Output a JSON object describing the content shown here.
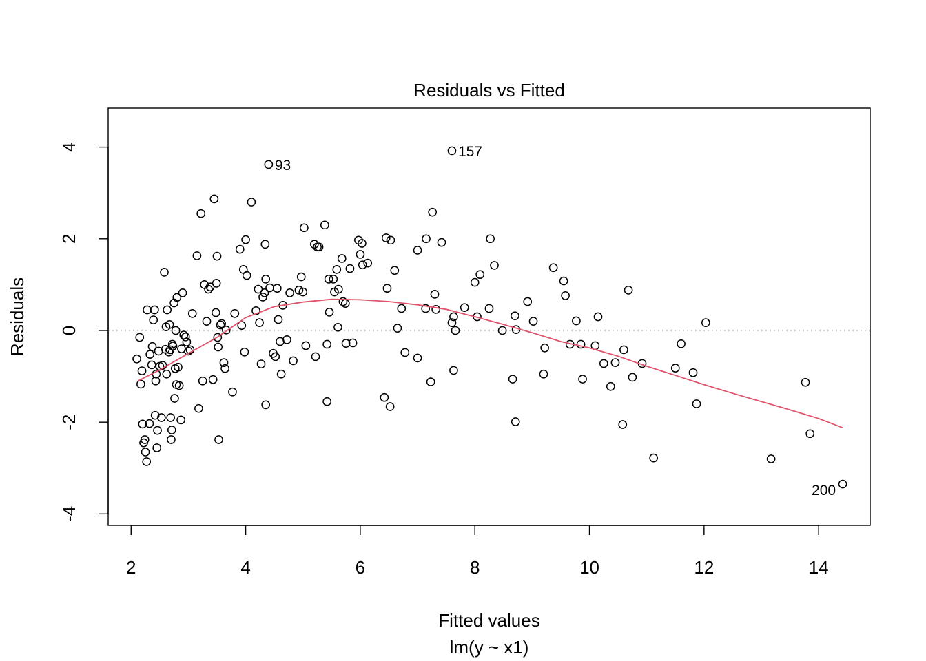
{
  "chart_data": {
    "type": "scatter",
    "title": "Residuals vs Fitted",
    "xlabel": "Fitted values",
    "sublabel": "lm(y ~ x1)",
    "ylabel": "Residuals",
    "xlim": [
      1.6,
      14.9
    ],
    "ylim": [
      -4.25,
      4.85
    ],
    "xticks": [
      2,
      4,
      6,
      8,
      10,
      12,
      14
    ],
    "yticks": [
      -4,
      -2,
      0,
      2,
      4
    ],
    "grid": false,
    "reference_line": {
      "y": 0,
      "style": "dotted",
      "color": "#bebebe"
    },
    "smooth_color": "#df536b",
    "point_color": "#000000",
    "labeled_points": [
      {
        "label": "157",
        "x": 7.6,
        "y": 3.92
      },
      {
        "label": "93",
        "x": 4.4,
        "y": 3.62
      },
      {
        "label": "200",
        "x": 14.42,
        "y": -3.35
      }
    ],
    "smooth": [
      [
        2.12,
        -1.1
      ],
      [
        2.5,
        -0.86
      ],
      [
        3.0,
        -0.5
      ],
      [
        3.5,
        -0.15
      ],
      [
        4.0,
        0.28
      ],
      [
        4.5,
        0.52
      ],
      [
        5.0,
        0.62
      ],
      [
        5.5,
        0.68
      ],
      [
        6.0,
        0.67
      ],
      [
        6.5,
        0.63
      ],
      [
        7.0,
        0.56
      ],
      [
        7.5,
        0.46
      ],
      [
        8.0,
        0.3
      ],
      [
        8.5,
        0.13
      ],
      [
        9.0,
        -0.05
      ],
      [
        9.5,
        -0.24
      ],
      [
        10.0,
        -0.38
      ],
      [
        10.5,
        -0.56
      ],
      [
        11.0,
        -0.78
      ],
      [
        11.5,
        -0.98
      ],
      [
        12.0,
        -1.18
      ],
      [
        12.5,
        -1.37
      ],
      [
        13.0,
        -1.55
      ],
      [
        13.5,
        -1.73
      ],
      [
        14.0,
        -1.92
      ],
      [
        14.42,
        -2.12
      ]
    ],
    "points": [
      [
        2.1,
        -0.62
      ],
      [
        2.15,
        -0.15
      ],
      [
        2.17,
        -1.17
      ],
      [
        2.19,
        -0.88
      ],
      [
        2.2,
        -2.04
      ],
      [
        2.22,
        -2.45
      ],
      [
        2.24,
        -2.38
      ],
      [
        2.25,
        -2.65
      ],
      [
        2.27,
        -2.86
      ],
      [
        2.28,
        0.45
      ],
      [
        2.32,
        -2.03
      ],
      [
        2.33,
        -0.52
      ],
      [
        2.36,
        -0.75
      ],
      [
        2.37,
        -0.35
      ],
      [
        2.39,
        0.23
      ],
      [
        2.41,
        0.45
      ],
      [
        2.42,
        -1.85
      ],
      [
        2.43,
        -1.1
      ],
      [
        2.44,
        -0.95
      ],
      [
        2.45,
        -2.56
      ],
      [
        2.46,
        -2.18
      ],
      [
        2.48,
        -0.45
      ],
      [
        2.5,
        -0.78
      ],
      [
        2.53,
        -1.9
      ],
      [
        2.55,
        -0.76
      ],
      [
        2.58,
        1.27
      ],
      [
        2.6,
        -0.41
      ],
      [
        2.61,
        0.08
      ],
      [
        2.62,
        -0.95
      ],
      [
        2.63,
        0.45
      ],
      [
        2.66,
        -0.47
      ],
      [
        2.67,
        0.13
      ],
      [
        2.68,
        -0.42
      ],
      [
        2.69,
        -1.9
      ],
      [
        2.7,
        -2.38
      ],
      [
        2.71,
        -2.17
      ],
      [
        2.72,
        -0.3
      ],
      [
        2.73,
        -0.34
      ],
      [
        2.75,
        0.6
      ],
      [
        2.76,
        -1.48
      ],
      [
        2.77,
        -0.83
      ],
      [
        2.78,
        0.0
      ],
      [
        2.79,
        -1.18
      ],
      [
        2.8,
        0.72
      ],
      [
        2.82,
        -0.8
      ],
      [
        2.84,
        -1.2
      ],
      [
        2.87,
        -1.95
      ],
      [
        2.88,
        -0.4
      ],
      [
        2.9,
        0.82
      ],
      [
        2.92,
        -0.1
      ],
      [
        2.95,
        -0.14
      ],
      [
        2.97,
        -0.25
      ],
      [
        3.0,
        -0.45
      ],
      [
        3.03,
        -0.42
      ],
      [
        3.07,
        0.37
      ],
      [
        3.15,
        1.63
      ],
      [
        3.18,
        -1.7
      ],
      [
        3.22,
        2.55
      ],
      [
        3.25,
        -1.1
      ],
      [
        3.28,
        1.0
      ],
      [
        3.32,
        0.2
      ],
      [
        3.35,
        0.9
      ],
      [
        3.38,
        0.95
      ],
      [
        3.43,
        -1.07
      ],
      [
        3.45,
        2.87
      ],
      [
        3.48,
        0.39
      ],
      [
        3.49,
        1.03
      ],
      [
        3.5,
        1.62
      ],
      [
        3.51,
        -0.15
      ],
      [
        3.52,
        -0.36
      ],
      [
        3.53,
        -2.38
      ],
      [
        3.56,
        0.12
      ],
      [
        3.58,
        0.15
      ],
      [
        3.62,
        -0.7
      ],
      [
        3.64,
        -0.83
      ],
      [
        3.66,
        0.01
      ],
      [
        3.77,
        -1.34
      ],
      [
        3.81,
        0.37
      ],
      [
        3.9,
        1.77
      ],
      [
        3.93,
        0.11
      ],
      [
        3.96,
        1.33
      ],
      [
        3.98,
        -0.47
      ],
      [
        4.0,
        1.98
      ],
      [
        4.02,
        1.2
      ],
      [
        4.1,
        2.8
      ],
      [
        4.18,
        0.43
      ],
      [
        4.22,
        0.9
      ],
      [
        4.24,
        0.17
      ],
      [
        4.27,
        -0.73
      ],
      [
        4.3,
        0.73
      ],
      [
        4.33,
        0.82
      ],
      [
        4.34,
        1.88
      ],
      [
        4.35,
        1.12
      ],
      [
        4.35,
        -1.62
      ],
      [
        4.4,
        3.62
      ],
      [
        4.42,
        0.93
      ],
      [
        4.48,
        -0.5
      ],
      [
        4.52,
        -0.57
      ],
      [
        4.55,
        0.92
      ],
      [
        4.57,
        0.24
      ],
      [
        4.6,
        -0.24
      ],
      [
        4.62,
        -0.95
      ],
      [
        4.65,
        0.55
      ],
      [
        4.72,
        -0.2
      ],
      [
        4.77,
        0.82
      ],
      [
        4.83,
        -0.66
      ],
      [
        4.93,
        0.88
      ],
      [
        4.97,
        1.17
      ],
      [
        5.0,
        0.84
      ],
      [
        5.02,
        2.24
      ],
      [
        5.05,
        -0.33
      ],
      [
        5.2,
        1.88
      ],
      [
        5.22,
        -0.57
      ],
      [
        5.25,
        1.82
      ],
      [
        5.28,
        1.82
      ],
      [
        5.38,
        2.3
      ],
      [
        5.42,
        -0.3
      ],
      [
        5.42,
        -1.55
      ],
      [
        5.45,
        1.12
      ],
      [
        5.46,
        0.4
      ],
      [
        5.53,
        1.12
      ],
      [
        5.55,
        0.84
      ],
      [
        5.59,
        1.33
      ],
      [
        5.61,
        0.07
      ],
      [
        5.62,
        0.9
      ],
      [
        5.68,
        1.57
      ],
      [
        5.7,
        0.63
      ],
      [
        5.74,
        0.59
      ],
      [
        5.75,
        -0.28
      ],
      [
        5.82,
        1.35
      ],
      [
        5.87,
        -0.27
      ],
      [
        5.97,
        1.97
      ],
      [
        6.0,
        1.66
      ],
      [
        6.03,
        1.9
      ],
      [
        6.04,
        1.43
      ],
      [
        6.13,
        1.47
      ],
      [
        6.42,
        -1.46
      ],
      [
        6.45,
        2.02
      ],
      [
        6.47,
        0.92
      ],
      [
        6.52,
        -1.66
      ],
      [
        6.53,
        1.97
      ],
      [
        6.6,
        1.31
      ],
      [
        6.65,
        0.05
      ],
      [
        6.72,
        0.48
      ],
      [
        6.78,
        -0.48
      ],
      [
        7.0,
        1.75
      ],
      [
        7.0,
        -0.6
      ],
      [
        7.14,
        0.48
      ],
      [
        7.15,
        2.0
      ],
      [
        7.23,
        -1.12
      ],
      [
        7.26,
        2.58
      ],
      [
        7.3,
        0.79
      ],
      [
        7.32,
        0.46
      ],
      [
        7.42,
        1.92
      ],
      [
        7.6,
        3.92
      ],
      [
        7.6,
        0.17
      ],
      [
        7.63,
        0.3
      ],
      [
        7.63,
        -0.87
      ],
      [
        7.66,
        0.0
      ],
      [
        7.82,
        0.5
      ],
      [
        8.0,
        1.05
      ],
      [
        8.04,
        0.3
      ],
      [
        8.09,
        1.22
      ],
      [
        8.25,
        0.48
      ],
      [
        8.27,
        2.0
      ],
      [
        8.34,
        1.42
      ],
      [
        8.48,
        0.0
      ],
      [
        8.66,
        -1.06
      ],
      [
        8.7,
        0.32
      ],
      [
        8.71,
        -1.99
      ],
      [
        8.72,
        0.02
      ],
      [
        8.92,
        0.63
      ],
      [
        9.02,
        0.2
      ],
      [
        9.2,
        -0.95
      ],
      [
        9.22,
        -0.38
      ],
      [
        9.37,
        1.37
      ],
      [
        9.55,
        1.08
      ],
      [
        9.58,
        0.76
      ],
      [
        9.66,
        -0.3
      ],
      [
        9.77,
        0.21
      ],
      [
        9.85,
        -0.3
      ],
      [
        9.88,
        -1.06
      ],
      [
        10.1,
        -0.33
      ],
      [
        10.15,
        0.3
      ],
      [
        10.25,
        -0.72
      ],
      [
        10.37,
        -1.22
      ],
      [
        10.45,
        -0.7
      ],
      [
        10.58,
        -2.05
      ],
      [
        10.6,
        -0.42
      ],
      [
        10.68,
        0.88
      ],
      [
        10.75,
        -1.02
      ],
      [
        10.92,
        -0.72
      ],
      [
        11.12,
        -2.78
      ],
      [
        11.5,
        -0.82
      ],
      [
        11.6,
        -0.29
      ],
      [
        11.81,
        -0.92
      ],
      [
        11.87,
        -1.6
      ],
      [
        12.03,
        0.17
      ],
      [
        13.17,
        -2.8
      ],
      [
        13.77,
        -1.13
      ],
      [
        13.85,
        -2.25
      ],
      [
        14.42,
        -3.35
      ]
    ]
  }
}
